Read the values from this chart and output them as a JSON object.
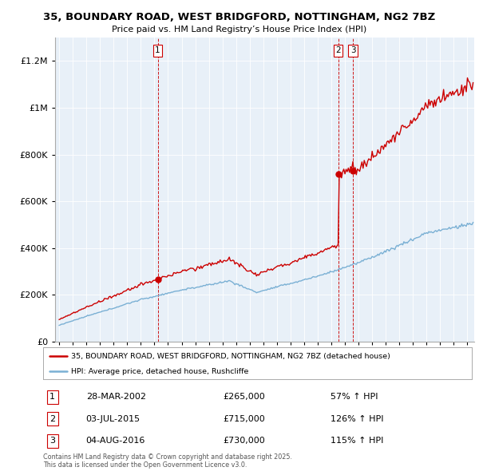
{
  "title1": "35, BOUNDARY ROAD, WEST BRIDGFORD, NOTTINGHAM, NG2 7BZ",
  "title2": "Price paid vs. HM Land Registry’s House Price Index (HPI)",
  "sale_year_nums": [
    2002.24,
    2015.5,
    2016.59
  ],
  "sale_prices": [
    265000,
    715000,
    730000
  ],
  "sale_labels": [
    "1",
    "2",
    "3"
  ],
  "legend_line1": "35, BOUNDARY ROAD, WEST BRIDGFORD, NOTTINGHAM, NG2 7BZ (detached house)",
  "legend_line2": "HPI: Average price, detached house, Rushcliffe",
  "footer": "Contains HM Land Registry data © Crown copyright and database right 2025.\nThis data is licensed under the Open Government Licence v3.0.",
  "line_color_red": "#cc0000",
  "line_color_blue": "#7ab0d4",
  "dashed_color": "#cc0000",
  "chart_bg": "#e8f0f8",
  "background_color": "#ffffff",
  "ylim": [
    0,
    1300000
  ],
  "xlim_start": 1994.7,
  "xlim_end": 2025.5,
  "table_rows": [
    [
      "1",
      "28-MAR-2002",
      "£265,000",
      "57% ↑ HPI"
    ],
    [
      "2",
      "03-JUL-2015",
      "£715,000",
      "126% ↑ HPI"
    ],
    [
      "3",
      "04-AUG-2016",
      "£730,000",
      "115% ↑ HPI"
    ]
  ]
}
